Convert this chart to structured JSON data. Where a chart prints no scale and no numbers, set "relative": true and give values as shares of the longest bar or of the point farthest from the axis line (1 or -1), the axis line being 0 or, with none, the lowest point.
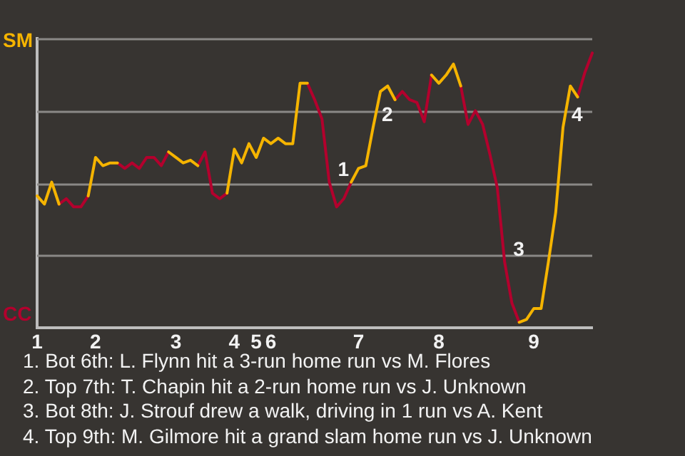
{
  "chart_data": {
    "type": "line",
    "relative": true,
    "categories": [
      "1",
      null,
      null,
      null,
      null,
      null,
      null,
      null,
      "2",
      null,
      null,
      null,
      null,
      null,
      null,
      null,
      null,
      null,
      null,
      "3",
      null,
      null,
      null,
      null,
      null,
      null,
      null,
      "4",
      null,
      null,
      "5",
      null,
      "6",
      null,
      null,
      null,
      null,
      null,
      null,
      null,
      null,
      null,
      null,
      null,
      "7",
      null,
      null,
      null,
      null,
      null,
      null,
      null,
      null,
      null,
      null,
      "8",
      null,
      null,
      null,
      null,
      null,
      null,
      null,
      null,
      null,
      null,
      null,
      null,
      "9",
      null,
      null,
      null,
      null,
      null,
      null,
      null,
      null
    ],
    "grid": "y",
    "legend": false,
    "marker": "none",
    "line_style": "solid",
    "series": [
      {
        "color": "#f5b400",
        "values": [
          0.48,
          0.45,
          0.53,
          0.45,
          null,
          null,
          null,
          0.48,
          0.62,
          0.59,
          0.6,
          0.6,
          null,
          null,
          null,
          null,
          null,
          null,
          0.64,
          0.62,
          0.6,
          0.61,
          0.59,
          null,
          null,
          null,
          0.49,
          0.65,
          0.6,
          0.67,
          0.62,
          0.69,
          0.67,
          0.69,
          0.67,
          0.67,
          0.89,
          0.89,
          null,
          null,
          null,
          null,
          null,
          0.53,
          0.58,
          0.59,
          0.73,
          0.86,
          0.88,
          0.83,
          null,
          null,
          null,
          null,
          0.92,
          0.89,
          0.92,
          0.96,
          0.88,
          null,
          null,
          null,
          null,
          null,
          null,
          null,
          0.02,
          0.03,
          0.07,
          0.07,
          0.24,
          0.42,
          0.73,
          0.88,
          0.84,
          null,
          null
        ]
      },
      {
        "color": "#b3002d",
        "values": [
          null,
          null,
          null,
          0.45,
          0.47,
          0.44,
          0.44,
          0.48,
          null,
          null,
          null,
          0.6,
          0.58,
          0.6,
          0.58,
          0.62,
          0.62,
          0.59,
          0.64,
          null,
          null,
          null,
          0.59,
          0.64,
          0.49,
          0.47,
          0.49,
          null,
          null,
          null,
          null,
          null,
          null,
          null,
          null,
          null,
          null,
          0.89,
          0.83,
          0.76,
          0.53,
          0.44,
          0.47,
          0.53,
          null,
          null,
          null,
          null,
          null,
          0.83,
          0.86,
          0.83,
          0.82,
          0.75,
          0.92,
          null,
          null,
          null,
          0.88,
          0.74,
          0.79,
          0.74,
          0.63,
          0.51,
          0.24,
          0.09,
          0.02,
          null,
          null,
          null,
          null,
          null,
          null,
          null,
          0.84,
          0.93,
          1
        ]
      }
    ],
    "annotations": [
      "SM",
      "CC",
      "1",
      "2",
      "3",
      "4",
      "1. Bot 6th: L. Flynn hit a 3-run home run vs M. Flores",
      "2. Top 7th: T. Chapin hit a 2-run home run vs J. Unknown",
      "3. Bot 8th: J. Strouf drew a walk, driving in 1 run vs A. Kent",
      "4. Top 9th: M. Gilmore hit a grand slam home run vs J. Unknown"
    ]
  }
}
